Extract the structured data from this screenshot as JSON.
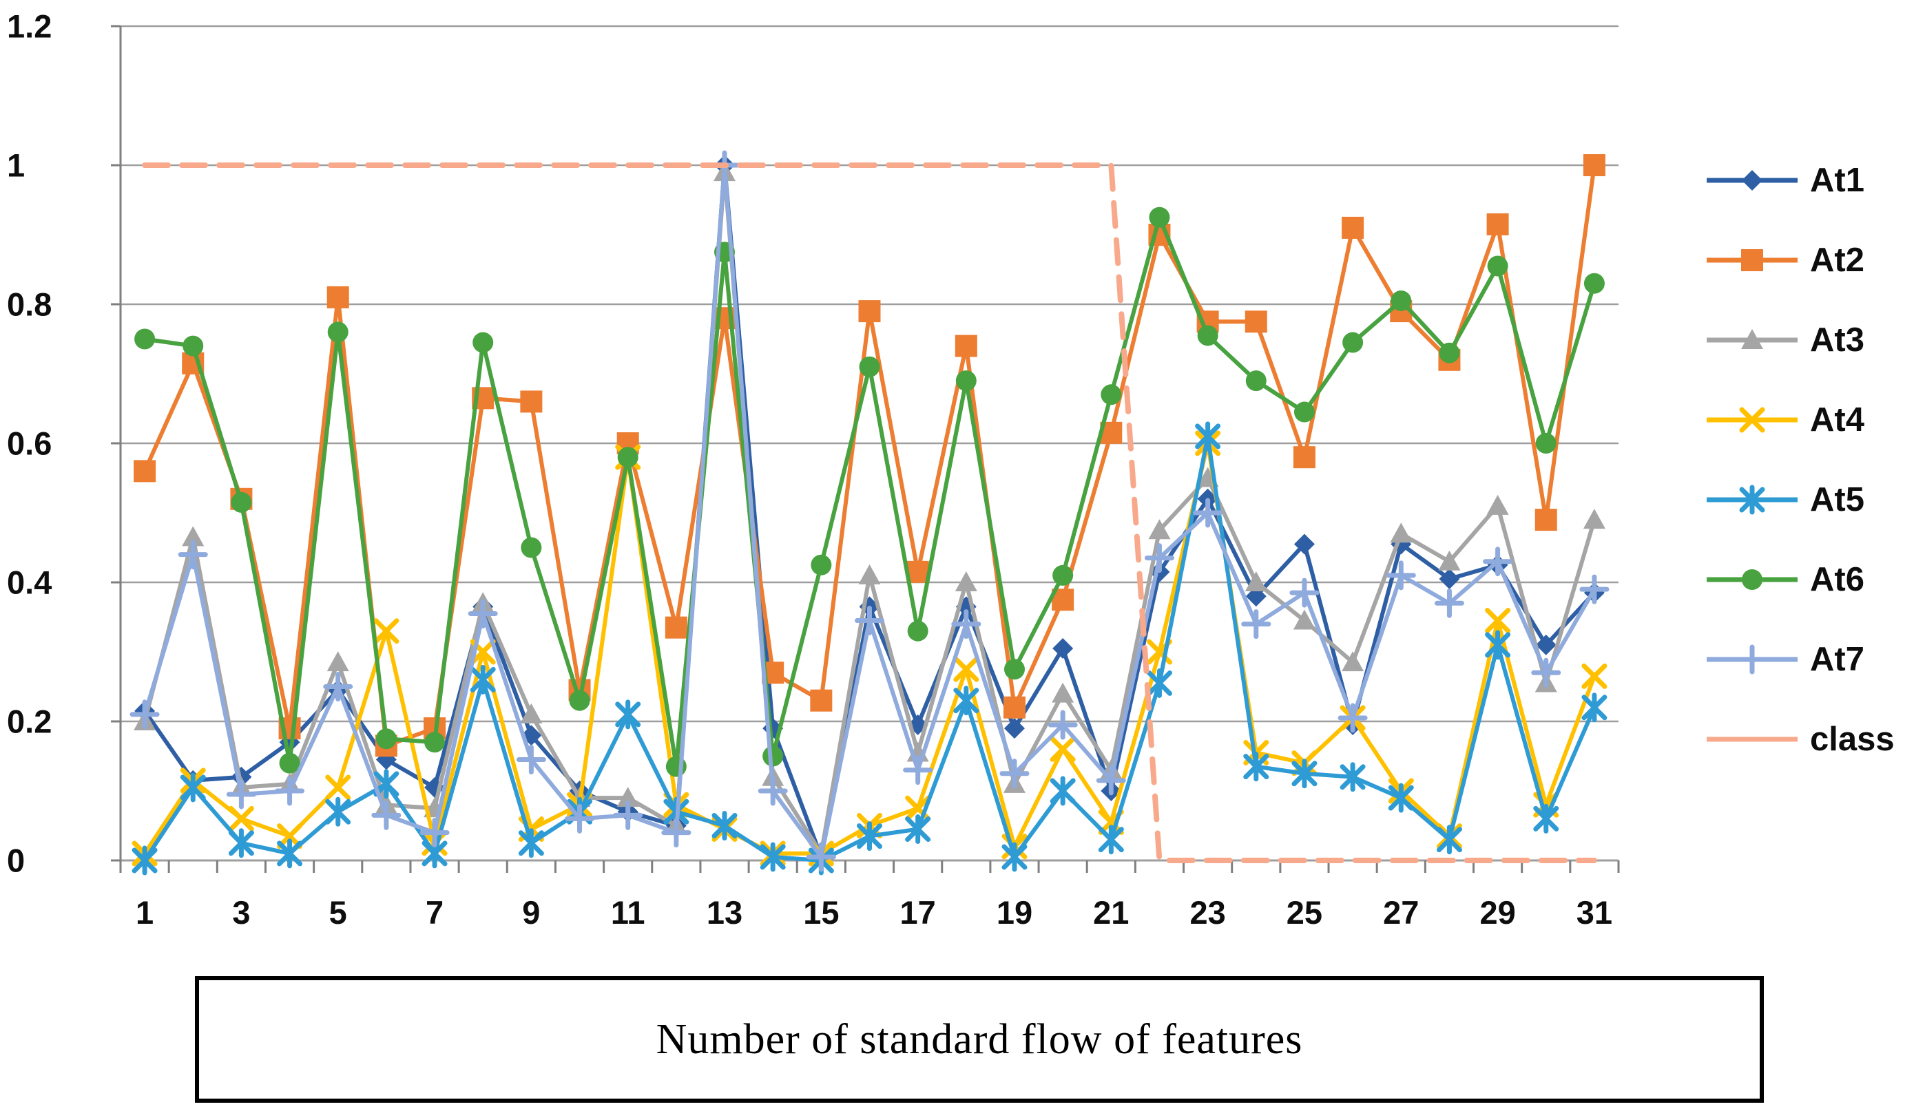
{
  "figure": {
    "xlabel_box": "Number of standard flow of features"
  },
  "chart_data": {
    "type": "line",
    "title": "",
    "xlabel": "Number of standard flow of features",
    "ylabel": "",
    "x": [
      1,
      2,
      3,
      4,
      5,
      6,
      7,
      8,
      9,
      10,
      11,
      12,
      13,
      14,
      15,
      16,
      17,
      18,
      19,
      20,
      21,
      22,
      23,
      24,
      25,
      26,
      27,
      28,
      29,
      30,
      31
    ],
    "x_tick_labels": [
      "1",
      "3",
      "5",
      "7",
      "9",
      "11",
      "13",
      "15",
      "17",
      "19",
      "21",
      "23",
      "25",
      "27",
      "29",
      "31"
    ],
    "y_ticks": [
      0,
      0.2,
      0.4,
      0.6,
      0.8,
      1,
      1.2
    ],
    "y_tick_labels": [
      "0",
      "0.2",
      "0.4",
      "0.6",
      "0.8",
      "1",
      "1.2"
    ],
    "ylim": [
      0,
      1.2
    ],
    "grid": "horizontal",
    "legend_position": "right",
    "colors": {
      "grid": "#9e9e9e",
      "axis": "#7f7f7f",
      "text": "#0d0d0d"
    },
    "series": [
      {
        "name": "At1",
        "color": "#2E5FA5",
        "marker": "diamond",
        "dashed": false,
        "values": [
          0.215,
          0.115,
          0.12,
          0.17,
          0.245,
          0.145,
          0.105,
          0.365,
          0.18,
          0.1,
          0.07,
          0.05,
          1.0,
          0.19,
          0.005,
          0.365,
          0.195,
          0.365,
          0.19,
          0.305,
          0.1,
          0.415,
          0.52,
          0.38,
          0.455,
          0.195,
          0.455,
          0.405,
          0.425,
          0.31,
          0.385
        ]
      },
      {
        "name": "At2",
        "color": "#ED7D31",
        "marker": "square",
        "dashed": false,
        "values": [
          0.56,
          0.715,
          0.52,
          0.19,
          0.81,
          0.165,
          0.19,
          0.665,
          0.66,
          0.245,
          0.6,
          0.335,
          0.78,
          0.27,
          0.23,
          0.79,
          0.415,
          0.74,
          0.22,
          0.375,
          0.615,
          0.9,
          0.775,
          0.775,
          0.58,
          0.91,
          0.79,
          0.72,
          0.915,
          0.49,
          1.0
        ]
      },
      {
        "name": "At3",
        "color": "#A5A5A5",
        "marker": "triangle",
        "dashed": false,
        "values": [
          0.2,
          0.465,
          0.105,
          0.11,
          0.285,
          0.08,
          0.075,
          0.37,
          0.21,
          0.09,
          0.09,
          0.05,
          0.99,
          0.12,
          0.01,
          0.41,
          0.155,
          0.4,
          0.11,
          0.24,
          0.13,
          0.475,
          0.55,
          0.4,
          0.345,
          0.285,
          0.47,
          0.43,
          0.51,
          0.255,
          0.49
        ]
      },
      {
        "name": "At4",
        "color": "#FFC000",
        "marker": "x",
        "dashed": false,
        "values": [
          0.01,
          0.115,
          0.06,
          0.035,
          0.105,
          0.33,
          0.025,
          0.3,
          0.045,
          0.08,
          0.58,
          0.08,
          0.045,
          0.01,
          0.01,
          0.05,
          0.075,
          0.275,
          0.02,
          0.16,
          0.055,
          0.3,
          0.6,
          0.155,
          0.14,
          0.205,
          0.1,
          0.035,
          0.345,
          0.08,
          0.265
        ]
      },
      {
        "name": "At5",
        "color": "#2E9BD5",
        "marker": "star",
        "dashed": false,
        "values": [
          0.0,
          0.105,
          0.025,
          0.01,
          0.07,
          0.11,
          0.01,
          0.26,
          0.025,
          0.07,
          0.21,
          0.07,
          0.05,
          0.005,
          0.0,
          0.035,
          0.045,
          0.23,
          0.005,
          0.1,
          0.03,
          0.255,
          0.61,
          0.135,
          0.125,
          0.12,
          0.09,
          0.03,
          0.31,
          0.06,
          0.22
        ]
      },
      {
        "name": "At6",
        "color": "#47A23F",
        "marker": "circle",
        "dashed": false,
        "values": [
          0.75,
          0.74,
          0.515,
          0.14,
          0.76,
          0.175,
          0.17,
          0.745,
          0.45,
          0.23,
          0.58,
          0.135,
          0.875,
          0.15,
          0.425,
          0.71,
          0.33,
          0.69,
          0.275,
          0.41,
          0.67,
          0.925,
          0.755,
          0.69,
          0.645,
          0.745,
          0.805,
          0.73,
          0.855,
          0.6,
          0.83
        ]
      },
      {
        "name": "At7",
        "color": "#8FAADC",
        "marker": "plus",
        "dashed": false,
        "values": [
          0.21,
          0.44,
          0.095,
          0.1,
          0.25,
          0.065,
          0.04,
          0.355,
          0.145,
          0.06,
          0.065,
          0.04,
          1.0,
          0.1,
          0.005,
          0.345,
          0.13,
          0.34,
          0.125,
          0.195,
          0.115,
          0.435,
          0.5,
          0.34,
          0.385,
          0.205,
          0.41,
          0.37,
          0.43,
          0.27,
          0.39
        ]
      },
      {
        "name": "class",
        "color": "#F9A98B",
        "marker": "none",
        "dashed": true,
        "values": [
          1,
          1,
          1,
          1,
          1,
          1,
          1,
          1,
          1,
          1,
          1,
          1,
          1,
          1,
          1,
          1,
          1,
          1,
          1,
          1,
          1,
          0,
          0,
          0,
          0,
          0,
          0,
          0,
          0,
          0,
          0
        ]
      }
    ]
  }
}
